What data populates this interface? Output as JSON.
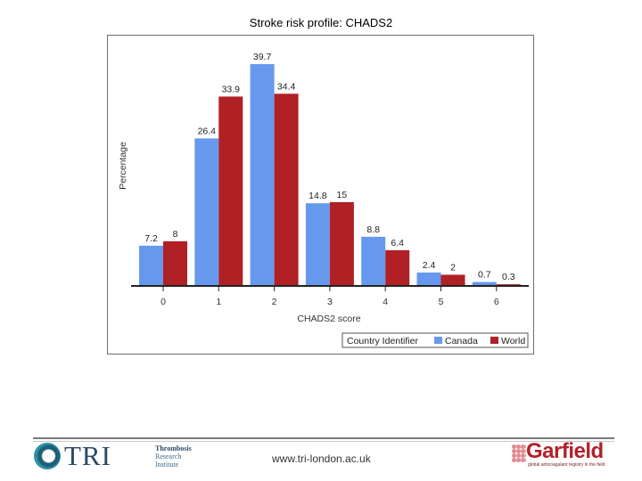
{
  "page": {
    "title": "Stroke risk profile: CHADS2",
    "footer_url": "www.tri-london.ac.uk"
  },
  "logos": {
    "tri_name": "TRI",
    "tri_sub": [
      "Thrombosis",
      "Research",
      "Institute"
    ],
    "garfield_name": "Garfield",
    "garfield_tagline": "global anticoagulant registry in the field"
  },
  "chart_data": {
    "type": "bar",
    "title": "",
    "xlabel": "CHADS2 score",
    "ylabel": "Percentage",
    "categories": [
      "0",
      "1",
      "2",
      "3",
      "4",
      "5",
      "6"
    ],
    "series": [
      {
        "name": "Canada",
        "values": [
          7.2,
          26.4,
          39.7,
          14.8,
          8.8,
          2.4,
          0.7
        ],
        "color": "#6699ee"
      },
      {
        "name": "World",
        "values": [
          8,
          33.9,
          34.4,
          15,
          6.4,
          2,
          0.3
        ],
        "color": "#b02025"
      }
    ],
    "value_labels": [
      [
        "7.2",
        "26.4",
        "39.7",
        "14.8",
        "8.8",
        "2.4",
        "0.7"
      ],
      [
        "8",
        "33.9",
        "34.4",
        "15",
        "6.4",
        "2",
        "0.3"
      ]
    ],
    "ylim": [
      0,
      40.5
    ],
    "grid": false,
    "legend": {
      "title": "Country Identifier",
      "placement": "bottom-right"
    }
  }
}
